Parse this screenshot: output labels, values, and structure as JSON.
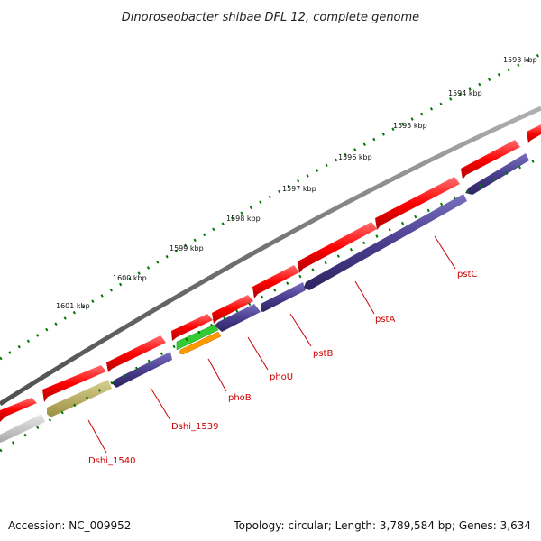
{
  "title": "Dinoroseobacter shibae DFL 12, complete genome",
  "kbp_labels": [
    "1593 kbp",
    "1594 kbp",
    "1595 kbp",
    "1596 kbp",
    "1597 kbp",
    "1598 kbp",
    "1599 kbp",
    "1600 kbp",
    "1601 kbp"
  ],
  "gene_labels": [
    "pstC",
    "pstA",
    "pstB",
    "phoU",
    "phoB",
    "Dshi_1539",
    "Dshi_1540"
  ],
  "footer": {
    "accession": "Accession: NC_009952",
    "topology": "Topology: circular; Length: 3,789,584 bp; Genes: 3,634"
  },
  "colors": {
    "forward_gene": "#ff0000",
    "reverse_gene": "#4b3f8f",
    "selected_green": "#33cc33",
    "selected_orange": "#ff9900",
    "olive_feature": "#b8b060",
    "grey_feature": "#c8c8c8",
    "backbone": "#808080",
    "tick_marks": "#007700",
    "label_text": "#cc0000"
  }
}
